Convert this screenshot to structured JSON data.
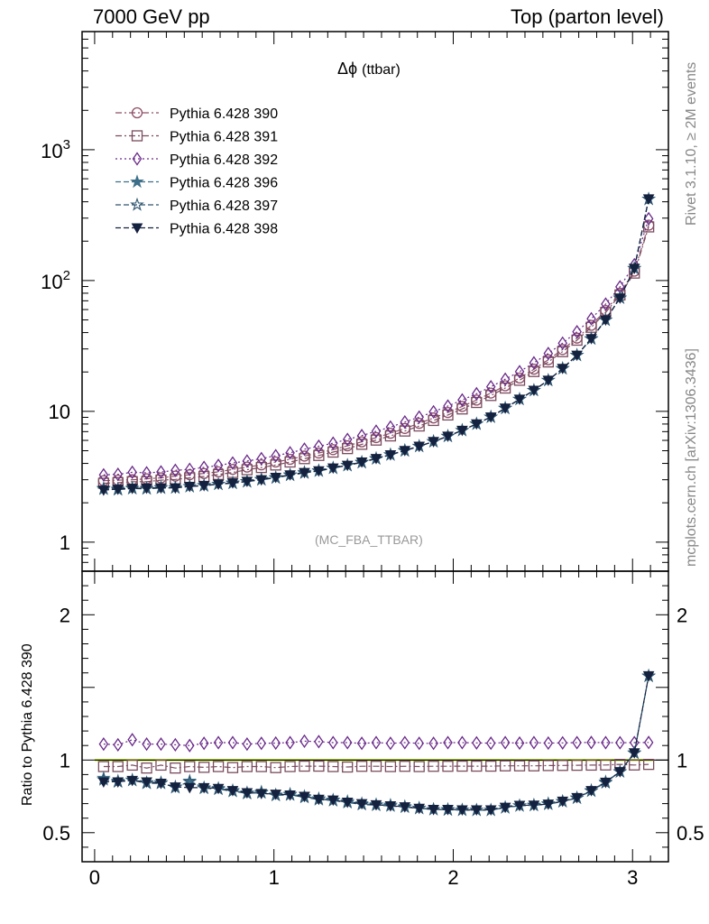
{
  "header": {
    "left": "7000 GeV pp",
    "right": "Top (parton level)"
  },
  "observable": {
    "symbol": "Δϕ",
    "name": "(ttbar)"
  },
  "analysis_tag": "(MC_FBA_TTBAR)",
  "side_labels": {
    "rivet": "Rivet 3.1.10, ≥ 2M events",
    "mcplots": "mcplots.cern.ch [arXiv:1306.3436]"
  },
  "ratio_ylabel": "Ratio to Pythia 6.428 390",
  "chart_data": [
    {
      "type": "line",
      "panel": "main",
      "y_scale": "log",
      "xlim": [
        -0.07,
        3.2
      ],
      "ylim": [
        0.6,
        8000
      ],
      "y_ticks": [
        {
          "value": 1,
          "label": "1"
        },
        {
          "value": 10,
          "label": "10"
        },
        {
          "value": 100,
          "label": "10",
          "sup": "2"
        },
        {
          "value": 1000,
          "label": "10",
          "sup": "3"
        }
      ],
      "legend_position": "top-left",
      "x": [
        0.05,
        0.13,
        0.21,
        0.29,
        0.37,
        0.45,
        0.53,
        0.61,
        0.69,
        0.77,
        0.85,
        0.93,
        1.01,
        1.09,
        1.17,
        1.25,
        1.33,
        1.41,
        1.49,
        1.57,
        1.65,
        1.73,
        1.81,
        1.89,
        1.97,
        2.05,
        2.13,
        2.21,
        2.29,
        2.37,
        2.45,
        2.53,
        2.61,
        2.69,
        2.77,
        2.85,
        2.93,
        3.01,
        3.09
      ],
      "series": [
        {
          "name": "Pythia 6.428 390",
          "color": "#8e4e68",
          "marker": "circle-open",
          "dash": "dashdot",
          "values": [
            2.95,
            2.98,
            3.0,
            3.05,
            3.1,
            3.2,
            3.28,
            3.35,
            3.45,
            3.6,
            3.75,
            3.9,
            4.1,
            4.3,
            4.55,
            4.8,
            5.1,
            5.45,
            5.85,
            6.3,
            6.8,
            7.4,
            8.1,
            8.9,
            9.8,
            10.9,
            12.2,
            13.8,
            15.7,
            18.0,
            21.0,
            24.8,
            29.7,
            36.3,
            45.5,
            59.0,
            80.0,
            118.0,
            265.0
          ]
        },
        {
          "name": "Pythia 6.428 391",
          "color": "#7a4b5e",
          "marker": "square-open",
          "dash": "dashdot",
          "values": [
            2.82,
            2.85,
            2.9,
            2.9,
            2.98,
            3.02,
            3.1,
            3.18,
            3.29,
            3.41,
            3.58,
            3.72,
            3.89,
            4.1,
            4.35,
            4.6,
            4.88,
            5.19,
            5.6,
            6.03,
            6.49,
            7.07,
            7.73,
            8.52,
            9.38,
            10.43,
            11.69,
            13.22,
            15.07,
            17.28,
            20.16,
            23.86,
            28.6,
            35.0,
            43.9,
            57.0,
            77.6,
            114.0,
            257.0
          ]
        },
        {
          "name": "Pythia 6.428 392",
          "color": "#6a2a8a",
          "marker": "diamond-open",
          "dash": "dotted",
          "values": [
            3.27,
            3.3,
            3.42,
            3.39,
            3.44,
            3.54,
            3.6,
            3.73,
            3.86,
            4.03,
            4.17,
            4.35,
            4.58,
            4.82,
            5.14,
            5.41,
            5.71,
            6.1,
            6.53,
            7.05,
            7.58,
            8.29,
            9.03,
            9.92,
            10.98,
            12.21,
            13.64,
            15.4,
            17.61,
            20.1,
            23.5,
            27.7,
            33.2,
            40.6,
            51.0,
            66.1,
            89.5,
            132.0,
            297.0
          ]
        },
        {
          "name": "Pythia 6.428 396",
          "color": "#3e6f8a",
          "marker": "star-filled",
          "dash": "dashed",
          "values": [
            2.58,
            2.55,
            2.59,
            2.58,
            2.62,
            2.6,
            2.67,
            2.72,
            2.78,
            2.84,
            2.91,
            3.03,
            3.12,
            3.28,
            3.42,
            3.52,
            3.7,
            3.88,
            4.09,
            4.37,
            4.67,
            5.03,
            5.42,
            5.89,
            6.47,
            7.17,
            8.03,
            9.07,
            10.6,
            12.4,
            14.5,
            17.3,
            21.3,
            26.9,
            36.0,
            50.0,
            73.7,
            124.0,
            420.0
          ]
        },
        {
          "name": "Pythia 6.428 397",
          "color": "#2e5570",
          "marker": "star-open",
          "dash": "dashed",
          "values": [
            2.55,
            2.52,
            2.57,
            2.56,
            2.59,
            2.61,
            2.66,
            2.7,
            2.77,
            2.82,
            2.9,
            3.0,
            3.1,
            3.25,
            3.38,
            3.5,
            3.68,
            3.86,
            4.06,
            4.34,
            4.65,
            5.0,
            5.4,
            5.87,
            6.44,
            7.15,
            8.0,
            9.04,
            10.55,
            12.35,
            14.45,
            17.25,
            21.2,
            26.8,
            35.8,
            49.8,
            73.5,
            123.5,
            418.0
          ]
        },
        {
          "name": "Pythia 6.428 398",
          "color": "#14213f",
          "marker": "triangle-down-filled",
          "dash": "dashed",
          "values": [
            2.5,
            2.54,
            2.58,
            2.59,
            2.6,
            2.6,
            2.67,
            2.71,
            2.78,
            2.84,
            2.92,
            3.0,
            3.13,
            3.27,
            3.41,
            3.51,
            3.69,
            3.87,
            4.1,
            4.36,
            4.66,
            5.02,
            5.41,
            5.88,
            6.46,
            7.16,
            8.02,
            9.06,
            10.59,
            12.39,
            14.49,
            17.29,
            21.3,
            26.9,
            36.0,
            50.0,
            73.6,
            124.0,
            421.0
          ]
        }
      ]
    },
    {
      "type": "line",
      "panel": "ratio",
      "xlim": [
        -0.07,
        3.2
      ],
      "ylim": [
        0.3,
        2.3
      ],
      "x_ticks": [
        0,
        1,
        2,
        3
      ],
      "y_ticks": [
        0.5,
        1,
        2
      ],
      "x": [
        0.05,
        0.13,
        0.21,
        0.29,
        0.37,
        0.45,
        0.53,
        0.61,
        0.69,
        0.77,
        0.85,
        0.93,
        1.01,
        1.09,
        1.17,
        1.25,
        1.33,
        1.41,
        1.49,
        1.57,
        1.65,
        1.73,
        1.81,
        1.89,
        1.97,
        2.05,
        2.13,
        2.21,
        2.29,
        2.37,
        2.45,
        2.53,
        2.61,
        2.69,
        2.77,
        2.85,
        2.93,
        3.01,
        3.09
      ],
      "series": [
        {
          "name": "Pythia 6.428 390",
          "color": "#8e4e68",
          "marker": "none",
          "dash": "solid",
          "values": [
            1,
            1,
            1,
            1,
            1,
            1,
            1,
            1,
            1,
            1,
            1,
            1,
            1,
            1,
            1,
            1,
            1,
            1,
            1,
            1,
            1,
            1,
            1,
            1,
            1,
            1,
            1,
            1,
            1,
            1,
            1,
            1,
            1,
            1,
            1,
            1,
            1,
            1,
            1
          ]
        },
        {
          "name": "Pythia 6.428 391",
          "color": "#7a4b5e",
          "marker": "square-open",
          "dash": "dashdot",
          "values": [
            0.955,
            0.955,
            0.965,
            0.945,
            0.965,
            0.945,
            0.955,
            0.95,
            0.955,
            0.948,
            0.955,
            0.955,
            0.948,
            0.955,
            0.958,
            0.958,
            0.955,
            0.952,
            0.957,
            0.957,
            0.955,
            0.957,
            0.955,
            0.957,
            0.957,
            0.958,
            0.958,
            0.958,
            0.96,
            0.96,
            0.96,
            0.962,
            0.963,
            0.964,
            0.965,
            0.966,
            0.97,
            0.966,
            0.97
          ]
        },
        {
          "name": "Pythia 6.428 392",
          "color": "#6a2a8a",
          "marker": "diamond-open",
          "dash": "dotted",
          "values": [
            1.11,
            1.105,
            1.14,
            1.11,
            1.11,
            1.105,
            1.1,
            1.115,
            1.12,
            1.12,
            1.11,
            1.115,
            1.117,
            1.12,
            1.13,
            1.127,
            1.12,
            1.12,
            1.115,
            1.12,
            1.115,
            1.12,
            1.115,
            1.115,
            1.12,
            1.12,
            1.118,
            1.116,
            1.12,
            1.117,
            1.12,
            1.117,
            1.118,
            1.12,
            1.121,
            1.12,
            1.119,
            1.12,
            1.121
          ]
        },
        {
          "name": "Pythia 6.428 396",
          "color": "#3e6f8a",
          "marker": "star-filled",
          "dash": "dashed",
          "values": [
            0.875,
            0.855,
            0.863,
            0.845,
            0.845,
            0.81,
            0.855,
            0.81,
            0.805,
            0.79,
            0.775,
            0.78,
            0.76,
            0.765,
            0.75,
            0.735,
            0.725,
            0.715,
            0.7,
            0.693,
            0.69,
            0.68,
            0.67,
            0.66,
            0.66,
            0.655,
            0.655,
            0.655,
            0.673,
            0.685,
            0.69,
            0.7,
            0.715,
            0.74,
            0.79,
            0.85,
            0.92,
            1.05,
            1.58
          ]
        },
        {
          "name": "Pythia 6.428 397",
          "color": "#2e5570",
          "marker": "star-open",
          "dash": "dashed",
          "values": [
            0.865,
            0.85,
            0.86,
            0.84,
            0.84,
            0.815,
            0.85,
            0.806,
            0.8,
            0.785,
            0.77,
            0.775,
            0.757,
            0.76,
            0.743,
            0.728,
            0.721,
            0.708,
            0.694,
            0.689,
            0.684,
            0.676,
            0.667,
            0.66,
            0.657,
            0.656,
            0.655,
            0.655,
            0.672,
            0.686,
            0.688,
            0.696,
            0.714,
            0.738,
            0.787,
            0.844,
            0.919,
            1.047,
            1.577
          ]
        },
        {
          "name": "Pythia 6.428 398",
          "color": "#14213f",
          "marker": "triangle-down-filled",
          "dash": "dashed",
          "values": [
            0.85,
            0.85,
            0.86,
            0.85,
            0.84,
            0.815,
            0.81,
            0.81,
            0.805,
            0.79,
            0.775,
            0.77,
            0.765,
            0.76,
            0.75,
            0.73,
            0.725,
            0.71,
            0.7,
            0.692,
            0.685,
            0.678,
            0.668,
            0.66,
            0.66,
            0.657,
            0.657,
            0.657,
            0.675,
            0.688,
            0.69,
            0.697,
            0.717,
            0.742,
            0.79,
            0.847,
            0.92,
            1.05,
            1.58
          ]
        }
      ]
    }
  ]
}
